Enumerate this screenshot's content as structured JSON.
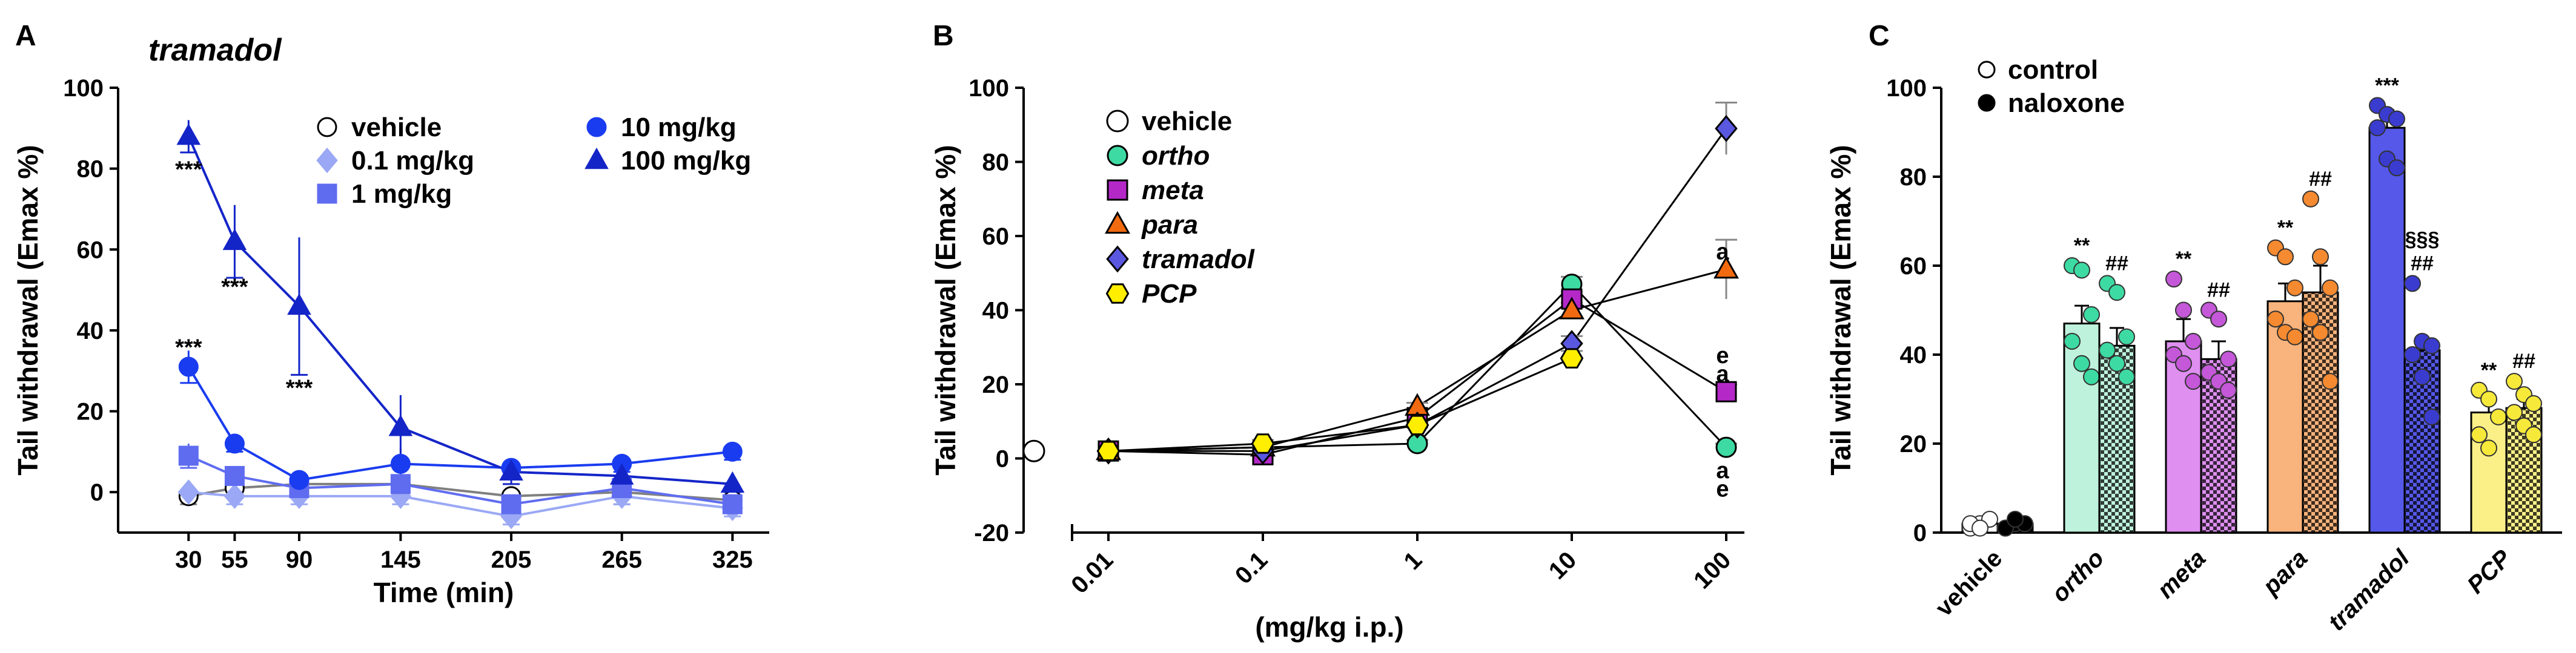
{
  "panels": {
    "A": {
      "letter": "A",
      "title": "tramadol"
    },
    "B": {
      "letter": "B"
    },
    "C": {
      "letter": "C"
    }
  },
  "chart_data": [
    {
      "id": "A",
      "type": "line",
      "title": "tramadol",
      "xlabel": "Time (min)",
      "ylabel": "Tail withdrawal (Emax %)",
      "ylim": [
        -10,
        100
      ],
      "y_ticks": [
        0,
        20,
        40,
        60,
        80,
        100
      ],
      "x_ticks": [
        30,
        55,
        90,
        145,
        205,
        265,
        325
      ],
      "xlim": [
        0,
        340
      ],
      "legend": "top-right",
      "series": [
        {
          "name": "vehicle",
          "color": "#ffffff",
          "stroke": "#000000",
          "line": "#808080",
          "marker": "circle",
          "x": [
            30,
            55,
            90,
            145,
            205,
            265,
            325
          ],
          "y": [
            -1,
            1,
            2,
            2,
            -1,
            0,
            -2
          ],
          "err": [
            2,
            2,
            2,
            2,
            2,
            3,
            2
          ]
        },
        {
          "name": "0.1 mg/kg",
          "color": "#9aa8f5",
          "stroke": "#9aa8f5",
          "line": "#9aa8f5",
          "marker": "diamond",
          "x": [
            30,
            55,
            90,
            145,
            205,
            265,
            325
          ],
          "y": [
            0,
            -1,
            -1,
            -1,
            -6,
            -1,
            -4
          ],
          "err": [
            2,
            2,
            2,
            2,
            2,
            2,
            2
          ]
        },
        {
          "name": "1 mg/kg",
          "color": "#5f6cf0",
          "stroke": "#5f6cf0",
          "line": "#5f6cf0",
          "marker": "square",
          "x": [
            30,
            55,
            90,
            145,
            205,
            265,
            325
          ],
          "y": [
            9,
            4,
            1,
            2,
            -3,
            1,
            -3
          ],
          "err": [
            3,
            2,
            2,
            2,
            2,
            2,
            2
          ]
        },
        {
          "name": "10 mg/kg",
          "color": "#1a3cf0",
          "stroke": "#1a3cf0",
          "line": "#1a3cf0",
          "marker": "circle",
          "x": [
            30,
            55,
            90,
            145,
            205,
            265,
            325
          ],
          "y": [
            31,
            12,
            3,
            7,
            6,
            7,
            10
          ],
          "err": [
            4,
            2,
            2,
            4,
            2,
            2,
            2
          ]
        },
        {
          "name": "100 mg/kg",
          "color": "#1425c8",
          "stroke": "#1425c8",
          "line": "#1425c8",
          "marker": "triangle",
          "x": [
            30,
            55,
            90,
            145,
            205,
            265,
            325
          ],
          "y": [
            88,
            62,
            46,
            16,
            5,
            4,
            2
          ],
          "err": [
            4,
            9,
            17,
            8,
            3,
            3,
            2
          ]
        }
      ],
      "annotations": [
        {
          "text": "***",
          "x": 30,
          "y": 80
        },
        {
          "text": "***",
          "x": 55,
          "y": 51
        },
        {
          "text": "***",
          "x": 90,
          "y": 26
        },
        {
          "text": "***",
          "x": 30,
          "y": 36
        }
      ]
    },
    {
      "id": "B",
      "type": "line",
      "xlabel": "(mg/kg i.p.)",
      "ylabel": "Tail withdrawal (Emax %)",
      "ylim": [
        -20,
        100
      ],
      "y_ticks": [
        -20,
        0,
        20,
        40,
        60,
        80,
        100
      ],
      "x_scale": "log",
      "x_tick_labels": [
        "0.01",
        "0.1",
        "1",
        "10",
        "100"
      ],
      "x_ticks": [
        0.01,
        0.1,
        1,
        10,
        100
      ],
      "legend": "top-left",
      "vehicle": {
        "name": "vehicle",
        "y": 2
      },
      "series": [
        {
          "name": "ortho",
          "color": "#3ddba3",
          "marker": "circle",
          "italic": true,
          "x": [
            0.01,
            0.1,
            1,
            10,
            100
          ],
          "y": [
            2,
            3,
            4,
            47,
            3
          ],
          "err": [
            0,
            1,
            1,
            2,
            1
          ]
        },
        {
          "name": "meta",
          "color": "#b428c8",
          "marker": "square",
          "italic": true,
          "x": [
            0.01,
            0.1,
            1,
            10,
            100
          ],
          "y": [
            2,
            1,
            11,
            43,
            18
          ],
          "err": [
            0,
            1,
            1,
            2,
            2
          ]
        },
        {
          "name": "para",
          "color": "#f26a0f",
          "marker": "triangle",
          "italic": true,
          "x": [
            0.01,
            0.1,
            1,
            10,
            100
          ],
          "y": [
            2,
            3,
            14,
            40,
            51
          ],
          "err": [
            0,
            1,
            1,
            2,
            8
          ]
        },
        {
          "name": "tramadol",
          "color": "#5a58e0",
          "marker": "diamond",
          "italic": true,
          "x": [
            0.01,
            0.1,
            1,
            10,
            100
          ],
          "y": [
            2,
            2,
            9,
            31,
            89
          ],
          "err": [
            0,
            1,
            1,
            2,
            7
          ]
        },
        {
          "name": "PCP",
          "color": "#ffee00",
          "marker": "hexagon",
          "italic": true,
          "x": [
            0.01,
            0.1,
            1,
            10,
            100
          ],
          "y": [
            2,
            4,
            9,
            27,
            0
          ],
          "err": [
            0,
            1,
            1,
            2,
            0
          ],
          "last_index_shown": 3
        }
      ],
      "annotations": [
        {
          "text": "a",
          "x": 100,
          "y": 56
        },
        {
          "text": "e",
          "x": 100,
          "y": 28
        },
        {
          "text": "a",
          "x": 100,
          "y": 23
        },
        {
          "text": "a",
          "x": 100,
          "y": -3
        },
        {
          "text": "e",
          "x": 100,
          "y": -8
        }
      ]
    },
    {
      "id": "C",
      "type": "bar",
      "ylabel": "Tail withdrawal (Emax %)",
      "ylim": [
        0,
        100
      ],
      "y_ticks": [
        0,
        20,
        40,
        60,
        80,
        100
      ],
      "legend": "top-left",
      "legend_entries": [
        {
          "name": "control",
          "fill": "#ffffff"
        },
        {
          "name": "naloxone",
          "fill": "#000000"
        }
      ],
      "categories": [
        "vehicle",
        "ortho",
        "meta",
        "para",
        "tramadol",
        "PCP"
      ],
      "category_italic": [
        false,
        true,
        true,
        true,
        true,
        true
      ],
      "colors": [
        "#ffffff",
        "#bff2dc",
        "#de8ff0",
        "#f9b37c",
        "#5558e8",
        "#fbf088"
      ],
      "dot_colors": [
        "#ffffff",
        "#3ddba3",
        "#c458d8",
        "#f58a30",
        "#3a3cd0",
        "#f6e93a"
      ],
      "series": [
        {
          "name": "control",
          "values": [
            2,
            47,
            43,
            52,
            91,
            27
          ],
          "err": [
            1,
            4,
            5,
            4,
            4,
            3
          ],
          "points": [
            [
              1,
              2,
              3,
              2,
              1
            ],
            [
              60,
              59,
              49,
              43,
              38,
              35
            ],
            [
              57,
              50,
              43,
              40,
              38,
              34
            ],
            [
              64,
              62,
              55,
              48,
              45,
              44
            ],
            [
              96,
              94,
              93,
              91,
              84,
              82
            ],
            [
              32,
              30,
              26,
              22,
              19
            ]
          ]
        },
        {
          "name": "naloxone",
          "values": [
            2,
            42,
            39,
            54,
            41,
            28
          ],
          "err": [
            1,
            4,
            4,
            6,
            2,
            2
          ],
          "points": [
            [
              1,
              2,
              2,
              1,
              3
            ],
            [
              56,
              54,
              44,
              41,
              38,
              35
            ],
            [
              50,
              48,
              39,
              36,
              34,
              32
            ],
            [
              75,
              62,
              55,
              48,
              45,
              34
            ],
            [
              56,
              43,
              42,
              40,
              35,
              26
            ],
            [
              34,
              31,
              29,
              27,
              24,
              22
            ]
          ]
        }
      ],
      "annotations": [
        {
          "category": "ortho",
          "series": "control",
          "text": "**"
        },
        {
          "category": "ortho",
          "series": "naloxone",
          "text": "##"
        },
        {
          "category": "meta",
          "series": "control",
          "text": "**"
        },
        {
          "category": "meta",
          "series": "naloxone",
          "text": "##"
        },
        {
          "category": "para",
          "series": "control",
          "text": "**"
        },
        {
          "category": "para",
          "series": "naloxone",
          "text": "##"
        },
        {
          "category": "tramadol",
          "series": "control",
          "text": "***"
        },
        {
          "category": "tramadol",
          "series": "naloxone",
          "text": "##"
        },
        {
          "category": "tramadol",
          "series": "naloxone",
          "text": "§§§"
        },
        {
          "category": "PCP",
          "series": "control",
          "text": "**"
        },
        {
          "category": "PCP",
          "series": "naloxone",
          "text": "##"
        }
      ]
    }
  ]
}
